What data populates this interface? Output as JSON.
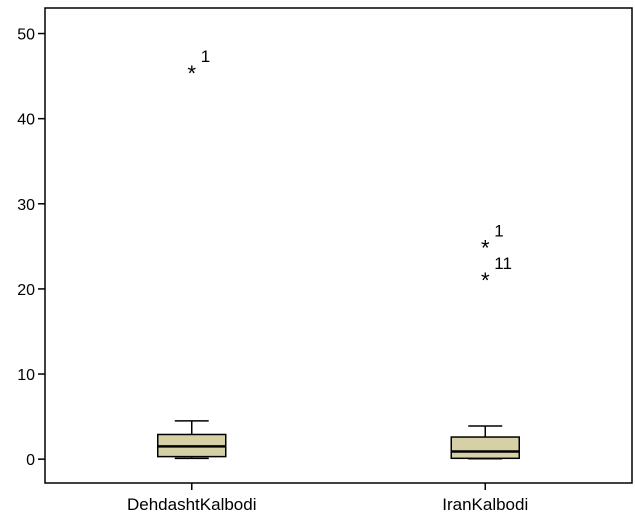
{
  "chart_data": {
    "type": "boxplot",
    "title": "",
    "xlabel": "",
    "ylabel": "",
    "ylim": [
      -2.8,
      53
    ],
    "yticks": [
      0,
      10,
      20,
      30,
      40,
      50
    ],
    "ytick_labels": [
      "0",
      "10",
      "20",
      "30",
      "40",
      "50"
    ],
    "categories": [
      "DehdashtKalbodi",
      "IranKalbodi"
    ],
    "box_fill": "#d6d0a6",
    "boxes": [
      {
        "category": "DehdashtKalbodi",
        "whisker_low": 0.1,
        "q1": 0.3,
        "median": 1.5,
        "q3": 2.9,
        "whisker_high": 4.5,
        "outliers": [
          {
            "value": 45.7,
            "label": "1"
          }
        ]
      },
      {
        "category": "IranKalbodi",
        "whisker_low": 0.05,
        "q1": 0.1,
        "median": 0.9,
        "q3": 2.6,
        "whisker_high": 3.9,
        "outliers": [
          {
            "value": 25.2,
            "label": "1"
          },
          {
            "value": 21.4,
            "label": "11"
          }
        ]
      }
    ]
  }
}
